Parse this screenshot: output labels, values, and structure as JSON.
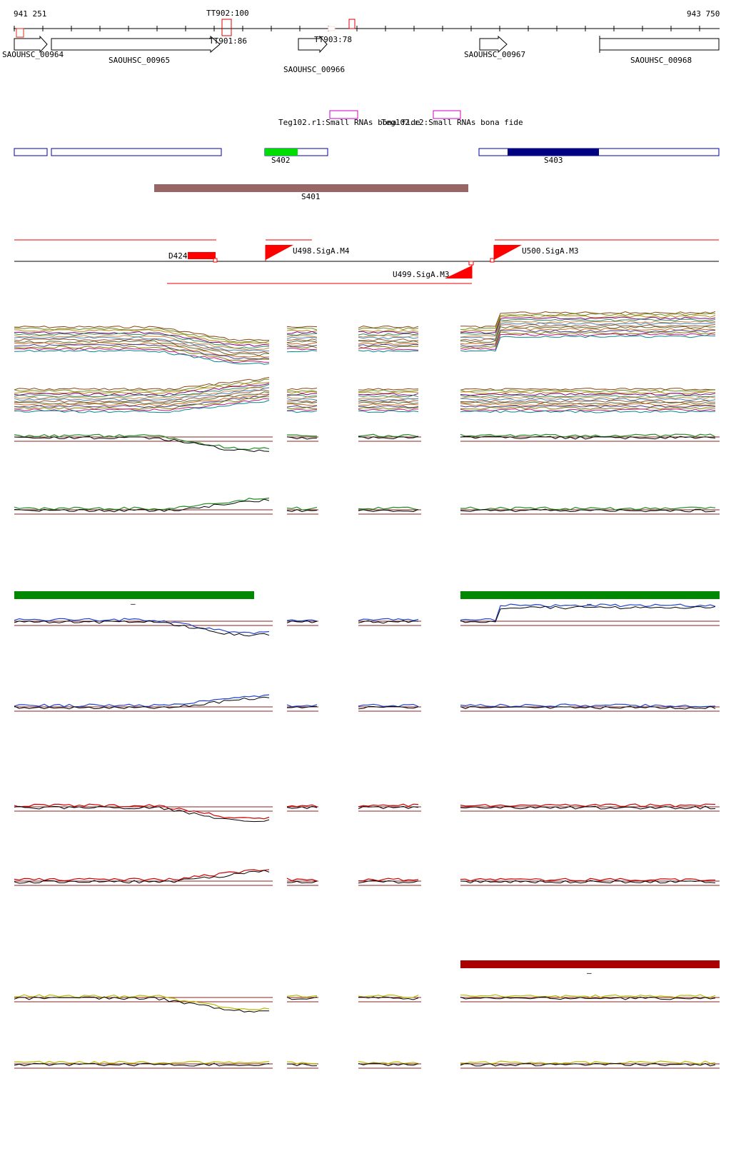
{
  "ruler": {
    "start_label": "941 251",
    "end_label": "943 750",
    "terminators": [
      {
        "label": "TT902:100"
      },
      {
        "label": "TT901:86"
      },
      {
        "label": "TT903:78"
      }
    ]
  },
  "genes": [
    {
      "label": "SAOUHSC_00964",
      "strand": "+"
    },
    {
      "label": "SAOUHSC_00965",
      "strand": "+"
    },
    {
      "label": "SAOUHSC_00966",
      "strand": "+"
    },
    {
      "label": "SAOUHSC_00967",
      "strand": "+"
    },
    {
      "label": "SAOUHSC_00968",
      "strand": "+"
    }
  ],
  "small_rnas": [
    {
      "label": "Teg102.r1:Small RNAs bona fide"
    },
    {
      "label": "Teg102.r2:Small RNAs bona fide"
    }
  ],
  "segments": [
    {
      "label": "S402"
    },
    {
      "label": "S403"
    },
    {
      "label": "S401"
    }
  ],
  "promoters": [
    {
      "label": "D424"
    },
    {
      "label": "U498.SigA.M4"
    },
    {
      "label": "U500.SigA.M3"
    },
    {
      "label": "U499.SigA.M3"
    }
  ],
  "group_marks": {
    "mark": "–"
  },
  "colors": {
    "gene_outline": "#000000",
    "terminator": "#dd0000",
    "small_rna": "#cc00cc",
    "segment_outline": "#0000aa",
    "s402_fill": "#00dd00",
    "s403_fill": "#000080",
    "s401_fill": "#996666",
    "promoter": "#ff0000",
    "group_green": "#008800",
    "group_red": "#aa0000",
    "ref_line": "#8b2222",
    "series_green": "#228b22",
    "series_blue": "#2244cc",
    "series_red": "#cc0000",
    "series_yellow": "#bbbb00"
  }
}
